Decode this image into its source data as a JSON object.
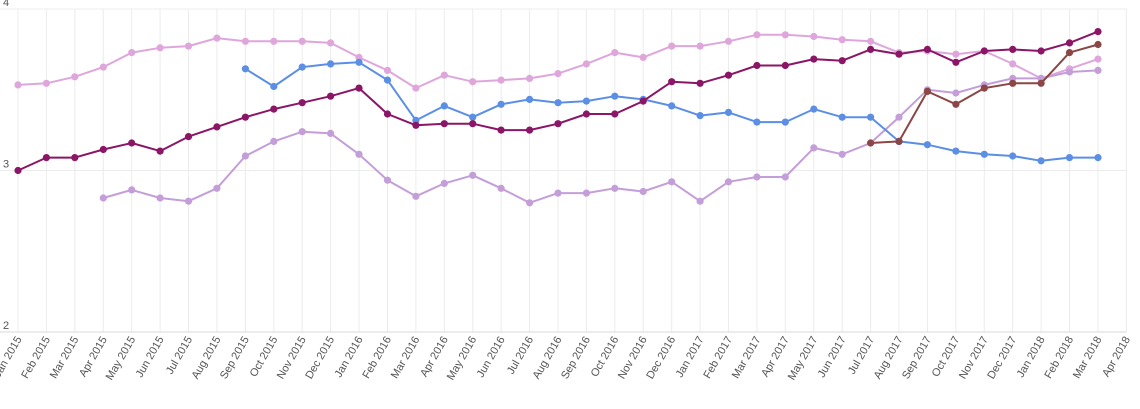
{
  "chart_data": {
    "type": "line",
    "title": "",
    "xlabel": "",
    "ylabel": "",
    "ylim": [
      2,
      4
    ],
    "yticks": [
      2,
      3,
      4
    ],
    "grid": true,
    "categories": [
      "Jan 2015",
      "Feb 2015",
      "Mar 2015",
      "Apr 2015",
      "May 2015",
      "Jun 2015",
      "Jul 2015",
      "Aug 2015",
      "Sep 2015",
      "Oct 2015",
      "Nov 2015",
      "Dec 2015",
      "Jan 2016",
      "Feb 2016",
      "Mar 2016",
      "Apr 2016",
      "May 2016",
      "Jun 2016",
      "Jul 2016",
      "Aug 2016",
      "Sep 2016",
      "Oct 2016",
      "Nov 2016",
      "Dec 2016",
      "Jan 2017",
      "Feb 2017",
      "Mar 2017",
      "Apr 2017",
      "May 2017",
      "Jun 2017",
      "Jul 2017",
      "Aug 2017",
      "Sep 2017",
      "Oct 2017",
      "Nov 2017",
      "Dec 2017",
      "Jan 2018",
      "Feb 2018",
      "Mar 2018",
      "Apr 2018"
    ],
    "series": [
      {
        "color": "#dfa6dc",
        "values": [
          3.53,
          3.54,
          3.58,
          3.64,
          3.73,
          3.76,
          3.77,
          3.82,
          3.8,
          3.8,
          3.8,
          3.79,
          3.7,
          3.62,
          3.51,
          3.59,
          3.55,
          3.56,
          3.57,
          3.6,
          3.66,
          3.73,
          3.7,
          3.77,
          3.77,
          3.8,
          3.84,
          3.84,
          3.83,
          3.81,
          3.8,
          3.73,
          3.74,
          3.72,
          3.74,
          3.66,
          3.57,
          3.63,
          3.69,
          null
        ]
      },
      {
        "color": "#c49ed9",
        "values": [
          null,
          null,
          null,
          2.83,
          2.88,
          2.83,
          2.81,
          2.89,
          3.09,
          3.18,
          3.24,
          3.23,
          3.1,
          2.94,
          2.84,
          2.92,
          2.97,
          2.89,
          2.8,
          2.86,
          2.86,
          2.89,
          2.87,
          2.93,
          2.81,
          2.93,
          2.96,
          2.96,
          3.14,
          3.1,
          3.17,
          3.33,
          3.5,
          3.48,
          3.53,
          3.57,
          3.57,
          3.61,
          3.62,
          null
        ]
      },
      {
        "color": "#5b8fe6",
        "values": [
          null,
          null,
          null,
          null,
          null,
          null,
          null,
          null,
          3.63,
          3.52,
          3.64,
          3.66,
          3.67,
          3.56,
          3.31,
          3.4,
          3.33,
          3.41,
          3.44,
          3.42,
          3.43,
          3.46,
          3.44,
          3.4,
          3.34,
          3.36,
          3.3,
          3.3,
          3.38,
          3.33,
          3.33,
          3.18,
          3.16,
          3.12,
          3.1,
          3.09,
          3.06,
          3.08,
          3.08,
          null
        ]
      },
      {
        "color": "#8b1566",
        "values": [
          3.0,
          3.08,
          3.08,
          3.13,
          3.17,
          3.12,
          3.21,
          3.27,
          3.33,
          3.38,
          3.42,
          3.46,
          3.51,
          3.35,
          3.28,
          3.29,
          3.29,
          3.25,
          3.25,
          3.29,
          3.35,
          3.35,
          3.43,
          3.55,
          3.54,
          3.59,
          3.65,
          3.65,
          3.69,
          3.68,
          3.75,
          3.72,
          3.75,
          3.67,
          3.74,
          3.75,
          3.74,
          3.79,
          3.86,
          null
        ]
      },
      {
        "color": "#8b4645",
        "values": [
          null,
          null,
          null,
          null,
          null,
          null,
          null,
          null,
          null,
          null,
          null,
          null,
          null,
          null,
          null,
          null,
          null,
          null,
          null,
          null,
          null,
          null,
          null,
          null,
          null,
          null,
          null,
          null,
          null,
          null,
          3.17,
          3.18,
          3.49,
          3.41,
          3.51,
          3.54,
          3.54,
          3.73,
          3.78,
          null
        ]
      }
    ]
  }
}
